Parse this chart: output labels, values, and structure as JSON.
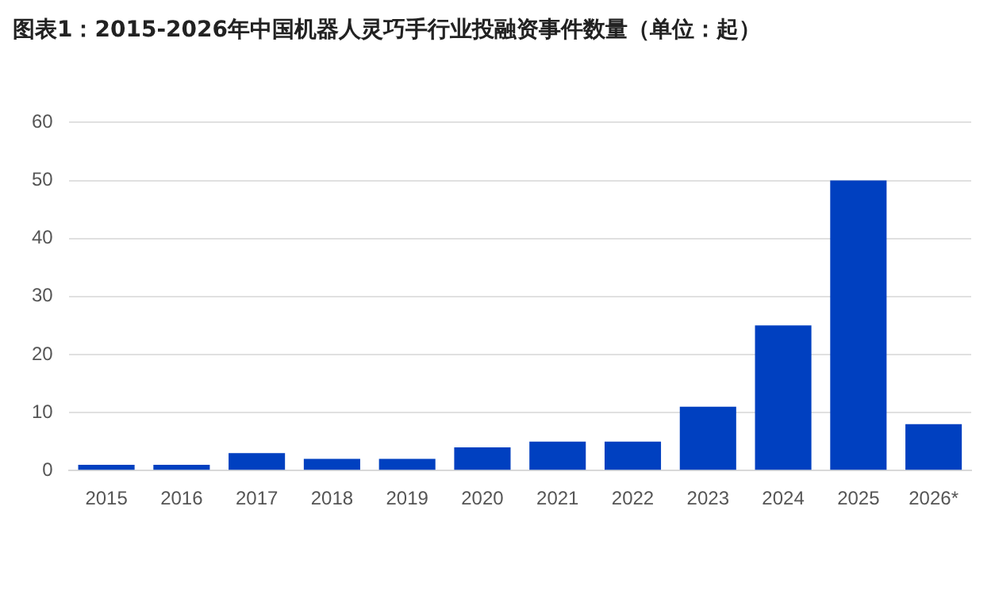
{
  "chart_data": {
    "type": "bar",
    "title": "图表1：2015-2026年中国机器人灵巧手行业投融资事件数量（单位：起）",
    "categories": [
      "2015",
      "2016",
      "2017",
      "2018",
      "2019",
      "2020",
      "2021",
      "2022",
      "2023",
      "2024",
      "2025",
      "2026*"
    ],
    "values": [
      1,
      1,
      3,
      2,
      2,
      4,
      5,
      5,
      11,
      25,
      50,
      8
    ],
    "color": "#0040c0",
    "ylim": [
      0,
      60
    ],
    "yticks": [
      0,
      10,
      20,
      30,
      40,
      50,
      60
    ],
    "grid": "y",
    "legend": false
  }
}
